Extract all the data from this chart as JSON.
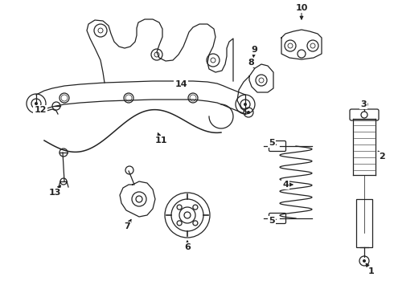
{
  "bg_color": "#ffffff",
  "line_color": "#222222",
  "figsize": [
    4.9,
    3.6
  ],
  "dpi": 100,
  "callout_fs": 8.0,
  "lw": 0.9
}
